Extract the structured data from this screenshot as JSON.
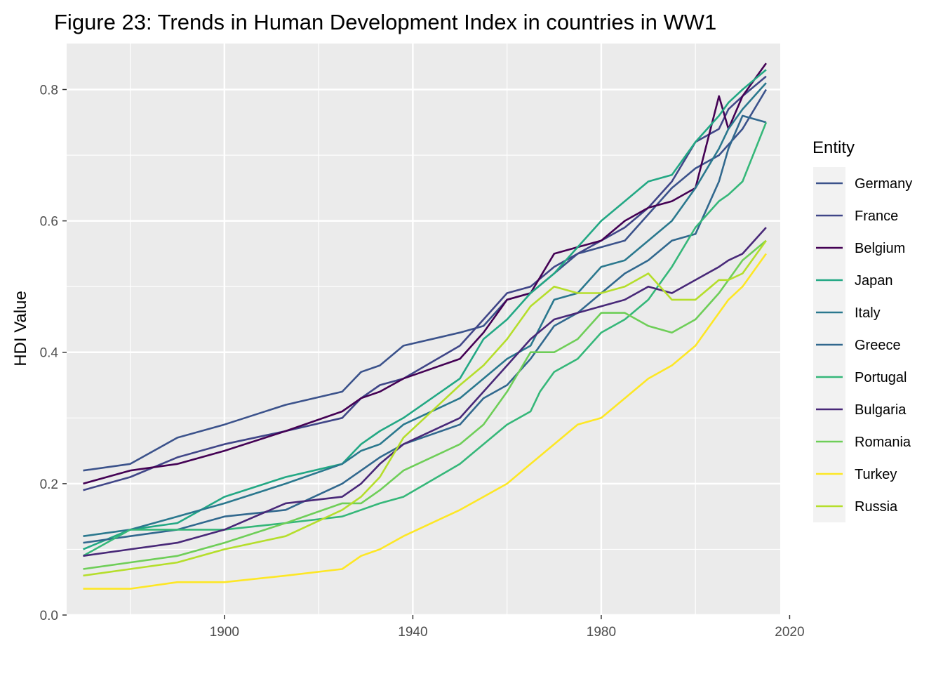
{
  "chart_data": {
    "type": "line",
    "title": "Figure 23: Trends in Human Development Index in countries in WW1",
    "xlabel": "",
    "ylabel": "HDI Value",
    "xlim": [
      1866.5,
      2018
    ],
    "ylim": [
      0,
      0.87
    ],
    "x_ticks": [
      1900,
      1940,
      1980,
      2020
    ],
    "x_minor": [
      1880,
      1920,
      1960,
      2000
    ],
    "y_ticks": [
      0.0,
      0.2,
      0.4,
      0.6,
      0.8
    ],
    "y_tick_labels": [
      "0.0",
      "0.2",
      "0.4",
      "0.6",
      "0.8"
    ],
    "y_minor": [
      0.1,
      0.3,
      0.5,
      0.7
    ],
    "grid": true,
    "legend": {
      "title": "Entity",
      "position": "right"
    },
    "series": [
      {
        "name": "Germany",
        "color": "#3b528b",
        "points": [
          [
            1870,
            0.22
          ],
          [
            1880,
            0.23
          ],
          [
            1890,
            0.27
          ],
          [
            1900,
            0.29
          ],
          [
            1913,
            0.32
          ],
          [
            1925,
            0.34
          ],
          [
            1929,
            0.37
          ],
          [
            1933,
            0.38
          ],
          [
            1938,
            0.41
          ],
          [
            1950,
            0.43
          ],
          [
            1955,
            0.44
          ],
          [
            1960,
            0.48
          ],
          [
            1965,
            0.49
          ],
          [
            1970,
            0.52
          ],
          [
            1975,
            0.55
          ],
          [
            1980,
            0.56
          ],
          [
            1985,
            0.57
          ],
          [
            1990,
            0.61
          ],
          [
            1995,
            0.65
          ],
          [
            2000,
            0.68
          ],
          [
            2005,
            0.7
          ],
          [
            2010,
            0.74
          ],
          [
            2015,
            0.8
          ]
        ]
      },
      {
        "name": "France",
        "color": "#404688",
        "points": [
          [
            1870,
            0.19
          ],
          [
            1880,
            0.21
          ],
          [
            1890,
            0.24
          ],
          [
            1900,
            0.26
          ],
          [
            1913,
            0.28
          ],
          [
            1925,
            0.3
          ],
          [
            1929,
            0.33
          ],
          [
            1933,
            0.35
          ],
          [
            1938,
            0.36
          ],
          [
            1950,
            0.41
          ],
          [
            1955,
            0.45
          ],
          [
            1960,
            0.49
          ],
          [
            1965,
            0.5
          ],
          [
            1970,
            0.53
          ],
          [
            1975,
            0.55
          ],
          [
            1980,
            0.57
          ],
          [
            1985,
            0.59
          ],
          [
            1990,
            0.62
          ],
          [
            1995,
            0.66
          ],
          [
            2000,
            0.72
          ],
          [
            2005,
            0.74
          ],
          [
            2007,
            0.77
          ],
          [
            2010,
            0.79
          ],
          [
            2015,
            0.82
          ]
        ]
      },
      {
        "name": "Belgium",
        "color": "#440154",
        "points": [
          [
            1870,
            0.2
          ],
          [
            1880,
            0.22
          ],
          [
            1890,
            0.23
          ],
          [
            1900,
            0.25
          ],
          [
            1913,
            0.28
          ],
          [
            1925,
            0.31
          ],
          [
            1929,
            0.33
          ],
          [
            1933,
            0.34
          ],
          [
            1938,
            0.36
          ],
          [
            1950,
            0.39
          ],
          [
            1955,
            0.43
          ],
          [
            1960,
            0.48
          ],
          [
            1965,
            0.49
          ],
          [
            1970,
            0.55
          ],
          [
            1975,
            0.56
          ],
          [
            1980,
            0.57
          ],
          [
            1985,
            0.6
          ],
          [
            1990,
            0.62
          ],
          [
            1995,
            0.63
          ],
          [
            2000,
            0.65
          ],
          [
            2005,
            0.79
          ],
          [
            2007,
            0.74
          ],
          [
            2010,
            0.79
          ],
          [
            2015,
            0.84
          ]
        ]
      },
      {
        "name": "Japan",
        "color": "#22a884",
        "points": [
          [
            1870,
            0.1
          ],
          [
            1880,
            0.13
          ],
          [
            1890,
            0.14
          ],
          [
            1900,
            0.18
          ],
          [
            1913,
            0.21
          ],
          [
            1925,
            0.23
          ],
          [
            1929,
            0.26
          ],
          [
            1933,
            0.28
          ],
          [
            1938,
            0.3
          ],
          [
            1950,
            0.36
          ],
          [
            1955,
            0.42
          ],
          [
            1960,
            0.45
          ],
          [
            1965,
            0.49
          ],
          [
            1970,
            0.52
          ],
          [
            1975,
            0.56
          ],
          [
            1980,
            0.6
          ],
          [
            1985,
            0.63
          ],
          [
            1990,
            0.66
          ],
          [
            1995,
            0.67
          ],
          [
            2000,
            0.72
          ],
          [
            2005,
            0.76
          ],
          [
            2007,
            0.78
          ],
          [
            2010,
            0.8
          ],
          [
            2015,
            0.83
          ]
        ]
      },
      {
        "name": "Italy",
        "color": "#2a788e",
        "points": [
          [
            1870,
            0.12
          ],
          [
            1880,
            0.13
          ],
          [
            1890,
            0.15
          ],
          [
            1900,
            0.17
          ],
          [
            1913,
            0.2
          ],
          [
            1925,
            0.23
          ],
          [
            1929,
            0.25
          ],
          [
            1933,
            0.26
          ],
          [
            1938,
            0.29
          ],
          [
            1950,
            0.33
          ],
          [
            1955,
            0.36
          ],
          [
            1960,
            0.39
          ],
          [
            1965,
            0.41
          ],
          [
            1970,
            0.48
          ],
          [
            1975,
            0.49
          ],
          [
            1980,
            0.53
          ],
          [
            1985,
            0.54
          ],
          [
            1990,
            0.57
          ],
          [
            1995,
            0.6
          ],
          [
            2000,
            0.65
          ],
          [
            2005,
            0.71
          ],
          [
            2007,
            0.74
          ],
          [
            2010,
            0.77
          ],
          [
            2015,
            0.81
          ]
        ]
      },
      {
        "name": "Greece",
        "color": "#31688e",
        "points": [
          [
            1870,
            0.11
          ],
          [
            1880,
            0.12
          ],
          [
            1890,
            0.13
          ],
          [
            1900,
            0.15
          ],
          [
            1913,
            0.16
          ],
          [
            1925,
            0.2
          ],
          [
            1929,
            0.22
          ],
          [
            1933,
            0.24
          ],
          [
            1938,
            0.26
          ],
          [
            1950,
            0.29
          ],
          [
            1955,
            0.33
          ],
          [
            1960,
            0.35
          ],
          [
            1965,
            0.39
          ],
          [
            1970,
            0.44
          ],
          [
            1975,
            0.46
          ],
          [
            1980,
            0.49
          ],
          [
            1985,
            0.52
          ],
          [
            1990,
            0.54
          ],
          [
            1995,
            0.57
          ],
          [
            2000,
            0.58
          ],
          [
            2005,
            0.66
          ],
          [
            2007,
            0.71
          ],
          [
            2010,
            0.76
          ],
          [
            2015,
            0.75
          ]
        ]
      },
      {
        "name": "Portugal",
        "color": "#35b779",
        "points": [
          [
            1870,
            0.09
          ],
          [
            1880,
            0.13
          ],
          [
            1890,
            0.13
          ],
          [
            1900,
            0.13
          ],
          [
            1913,
            0.14
          ],
          [
            1925,
            0.15
          ],
          [
            1929,
            0.16
          ],
          [
            1933,
            0.17
          ],
          [
            1938,
            0.18
          ],
          [
            1950,
            0.23
          ],
          [
            1955,
            0.26
          ],
          [
            1960,
            0.29
          ],
          [
            1965,
            0.31
          ],
          [
            1967,
            0.34
          ],
          [
            1970,
            0.37
          ],
          [
            1975,
            0.39
          ],
          [
            1980,
            0.43
          ],
          [
            1985,
            0.45
          ],
          [
            1990,
            0.48
          ],
          [
            1995,
            0.53
          ],
          [
            2000,
            0.59
          ],
          [
            2005,
            0.63
          ],
          [
            2007,
            0.64
          ],
          [
            2010,
            0.66
          ],
          [
            2015,
            0.75
          ]
        ]
      },
      {
        "name": "Bulgaria",
        "color": "#482878",
        "points": [
          [
            1870,
            0.09
          ],
          [
            1880,
            0.1
          ],
          [
            1890,
            0.11
          ],
          [
            1900,
            0.13
          ],
          [
            1913,
            0.17
          ],
          [
            1925,
            0.18
          ],
          [
            1929,
            0.2
          ],
          [
            1933,
            0.23
          ],
          [
            1938,
            0.26
          ],
          [
            1950,
            0.3
          ],
          [
            1955,
            0.34
          ],
          [
            1960,
            0.38
          ],
          [
            1965,
            0.42
          ],
          [
            1970,
            0.45
          ],
          [
            1975,
            0.46
          ],
          [
            1980,
            0.47
          ],
          [
            1985,
            0.48
          ],
          [
            1990,
            0.5
          ],
          [
            1995,
            0.49
          ],
          [
            2000,
            0.51
          ],
          [
            2005,
            0.53
          ],
          [
            2007,
            0.54
          ],
          [
            2010,
            0.55
          ],
          [
            2015,
            0.59
          ]
        ]
      },
      {
        "name": "Romania",
        "color": "#6ece58",
        "points": [
          [
            1870,
            0.07
          ],
          [
            1880,
            0.08
          ],
          [
            1890,
            0.09
          ],
          [
            1900,
            0.11
          ],
          [
            1913,
            0.14
          ],
          [
            1925,
            0.17
          ],
          [
            1929,
            0.17
          ],
          [
            1933,
            0.19
          ],
          [
            1938,
            0.22
          ],
          [
            1950,
            0.26
          ],
          [
            1955,
            0.29
          ],
          [
            1960,
            0.34
          ],
          [
            1965,
            0.4
          ],
          [
            1970,
            0.4
          ],
          [
            1975,
            0.42
          ],
          [
            1980,
            0.46
          ],
          [
            1985,
            0.46
          ],
          [
            1990,
            0.44
          ],
          [
            1995,
            0.43
          ],
          [
            2000,
            0.45
          ],
          [
            2005,
            0.49
          ],
          [
            2007,
            0.51
          ],
          [
            2010,
            0.54
          ],
          [
            2015,
            0.57
          ]
        ]
      },
      {
        "name": "Turkey",
        "color": "#fde725",
        "points": [
          [
            1870,
            0.04
          ],
          [
            1880,
            0.04
          ],
          [
            1890,
            0.05
          ],
          [
            1900,
            0.05
          ],
          [
            1913,
            0.06
          ],
          [
            1925,
            0.07
          ],
          [
            1929,
            0.09
          ],
          [
            1933,
            0.1
          ],
          [
            1938,
            0.12
          ],
          [
            1950,
            0.16
          ],
          [
            1955,
            0.18
          ],
          [
            1960,
            0.2
          ],
          [
            1965,
            0.23
          ],
          [
            1970,
            0.26
          ],
          [
            1975,
            0.29
          ],
          [
            1980,
            0.3
          ],
          [
            1985,
            0.33
          ],
          [
            1990,
            0.36
          ],
          [
            1995,
            0.38
          ],
          [
            2000,
            0.41
          ],
          [
            2005,
            0.46
          ],
          [
            2007,
            0.48
          ],
          [
            2010,
            0.5
          ],
          [
            2015,
            0.55
          ]
        ]
      },
      {
        "name": "Russia",
        "color": "#b5de2b",
        "points": [
          [
            1870,
            0.06
          ],
          [
            1880,
            0.07
          ],
          [
            1890,
            0.08
          ],
          [
            1900,
            0.1
          ],
          [
            1913,
            0.12
          ],
          [
            1925,
            0.16
          ],
          [
            1929,
            0.18
          ],
          [
            1933,
            0.21
          ],
          [
            1938,
            0.27
          ],
          [
            1950,
            0.35
          ],
          [
            1955,
            0.38
          ],
          [
            1960,
            0.42
          ],
          [
            1965,
            0.47
          ],
          [
            1970,
            0.5
          ],
          [
            1975,
            0.49
          ],
          [
            1980,
            0.49
          ],
          [
            1985,
            0.5
          ],
          [
            1990,
            0.52
          ],
          [
            1995,
            0.48
          ],
          [
            2000,
            0.48
          ],
          [
            2005,
            0.51
          ],
          [
            2007,
            0.51
          ],
          [
            2010,
            0.52
          ],
          [
            2015,
            0.57
          ]
        ]
      }
    ]
  }
}
